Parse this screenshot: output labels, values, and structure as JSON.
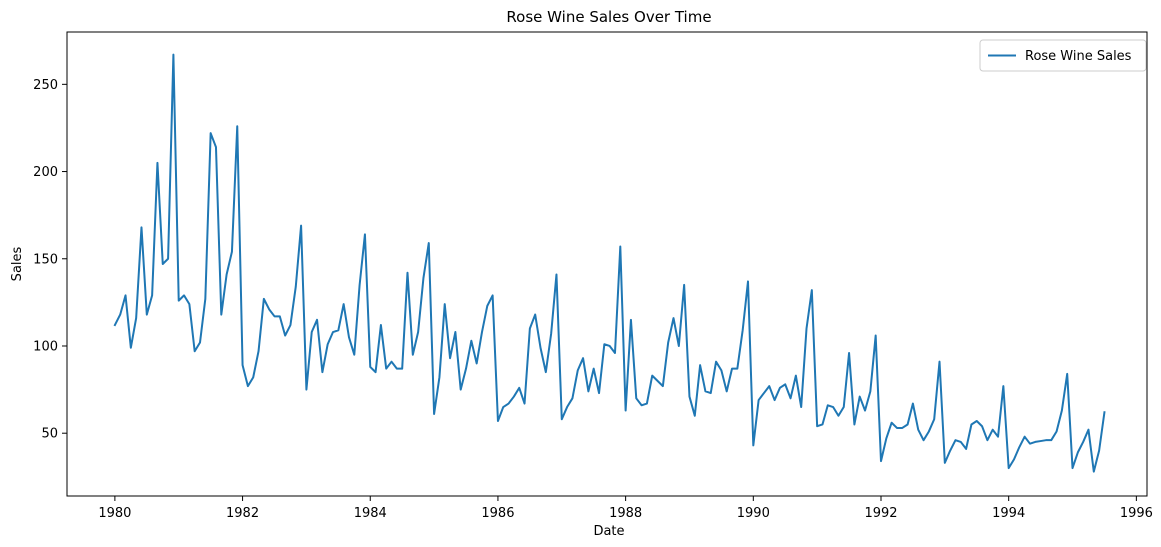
{
  "chart_data": {
    "type": "line",
    "title": "Rose Wine Sales Over Time",
    "xlabel": "Date",
    "ylabel": "Sales",
    "xlim": [
      "1979-04-01",
      "1996-03-01"
    ],
    "ylim": [
      14,
      280
    ],
    "xticks": [
      "1980",
      "1982",
      "1984",
      "1986",
      "1988",
      "1990",
      "1992",
      "1994",
      "1996"
    ],
    "yticks": [
      "50",
      "100",
      "150",
      "200",
      "250"
    ],
    "grid": false,
    "legend": "top-right",
    "series": [
      {
        "name": "Rose Wine Sales",
        "color": "#1f77b4",
        "start": "1980-01",
        "frequency": "monthly",
        "values": [
          112,
          118,
          129,
          99,
          116,
          168,
          118,
          129,
          205,
          147,
          150,
          267,
          126,
          129,
          124,
          97,
          102,
          127,
          222,
          214,
          118,
          141,
          154,
          226,
          89,
          77,
          82,
          97,
          127,
          121,
          117,
          117,
          106,
          112,
          134,
          169,
          75,
          108,
          115,
          85,
          101,
          108,
          109,
          124,
          105,
          95,
          135,
          164,
          88,
          85,
          112,
          87,
          91,
          87,
          87,
          142,
          95,
          108,
          139,
          159,
          61,
          82,
          124,
          93,
          108,
          75,
          87,
          103,
          90,
          108,
          123,
          129,
          57,
          65,
          67,
          71,
          76,
          67,
          110,
          118,
          99,
          85,
          107,
          141,
          58,
          65,
          70,
          86,
          93,
          74,
          87,
          73,
          101,
          100,
          96,
          157,
          63,
          115,
          70,
          66,
          67,
          83,
          80,
          77,
          102,
          116,
          100,
          135,
          71,
          60,
          89,
          74,
          73,
          91,
          86,
          74,
          87,
          87,
          109,
          137,
          43,
          69,
          73,
          77,
          69,
          76,
          78,
          70,
          83,
          65,
          110,
          132,
          54,
          55,
          66,
          65,
          60,
          65,
          96,
          55,
          71,
          63,
          74,
          106,
          34,
          47,
          56,
          53,
          53,
          55,
          67,
          52,
          46,
          51,
          58,
          91,
          33,
          40,
          46,
          45,
          41,
          55,
          57,
          54,
          46,
          52,
          48,
          77,
          30,
          35,
          42,
          48,
          44,
          45,
          45.5,
          46,
          46,
          51,
          63,
          84,
          30,
          39,
          45,
          52,
          28,
          40,
          62
        ]
      }
    ]
  }
}
